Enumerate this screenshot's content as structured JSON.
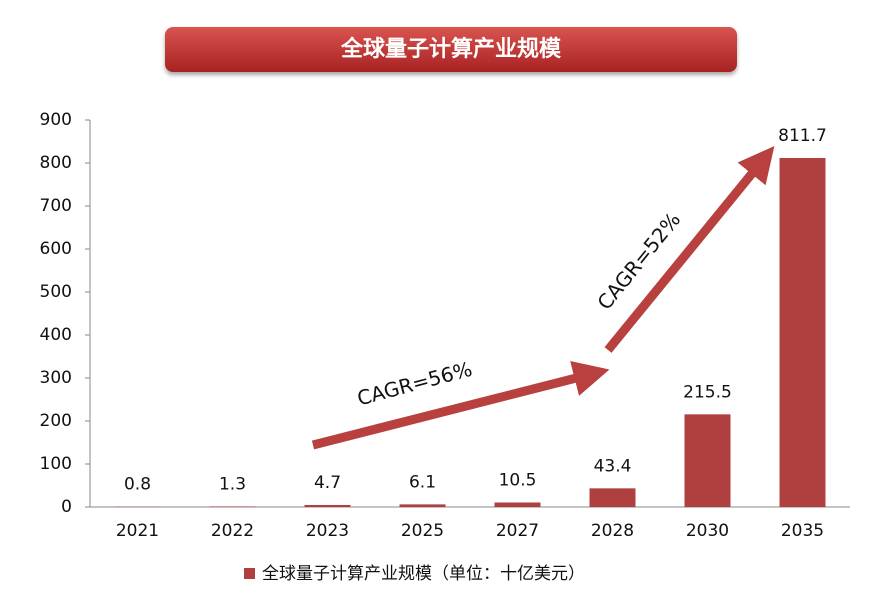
{
  "chart_data": {
    "type": "bar",
    "title": "全球量子计算产业规模",
    "categories": [
      "2021",
      "2022",
      "2023",
      "2025",
      "2027",
      "2028",
      "2030",
      "2035"
    ],
    "series": [
      {
        "name": "全球量子计算产业规模（单位：十亿美元）",
        "color": "#b0403f",
        "values": [
          0.8,
          1.3,
          4.7,
          6.1,
          10.5,
          43.4,
          215.5,
          811.7
        ]
      }
    ],
    "ylim": [
      0,
      900
    ],
    "yticks": [
      0,
      100,
      200,
      300,
      400,
      500,
      600,
      700,
      800,
      900
    ],
    "annotations": [
      "CAGR=56%",
      "CAGR=52%"
    ],
    "grid": false
  }
}
